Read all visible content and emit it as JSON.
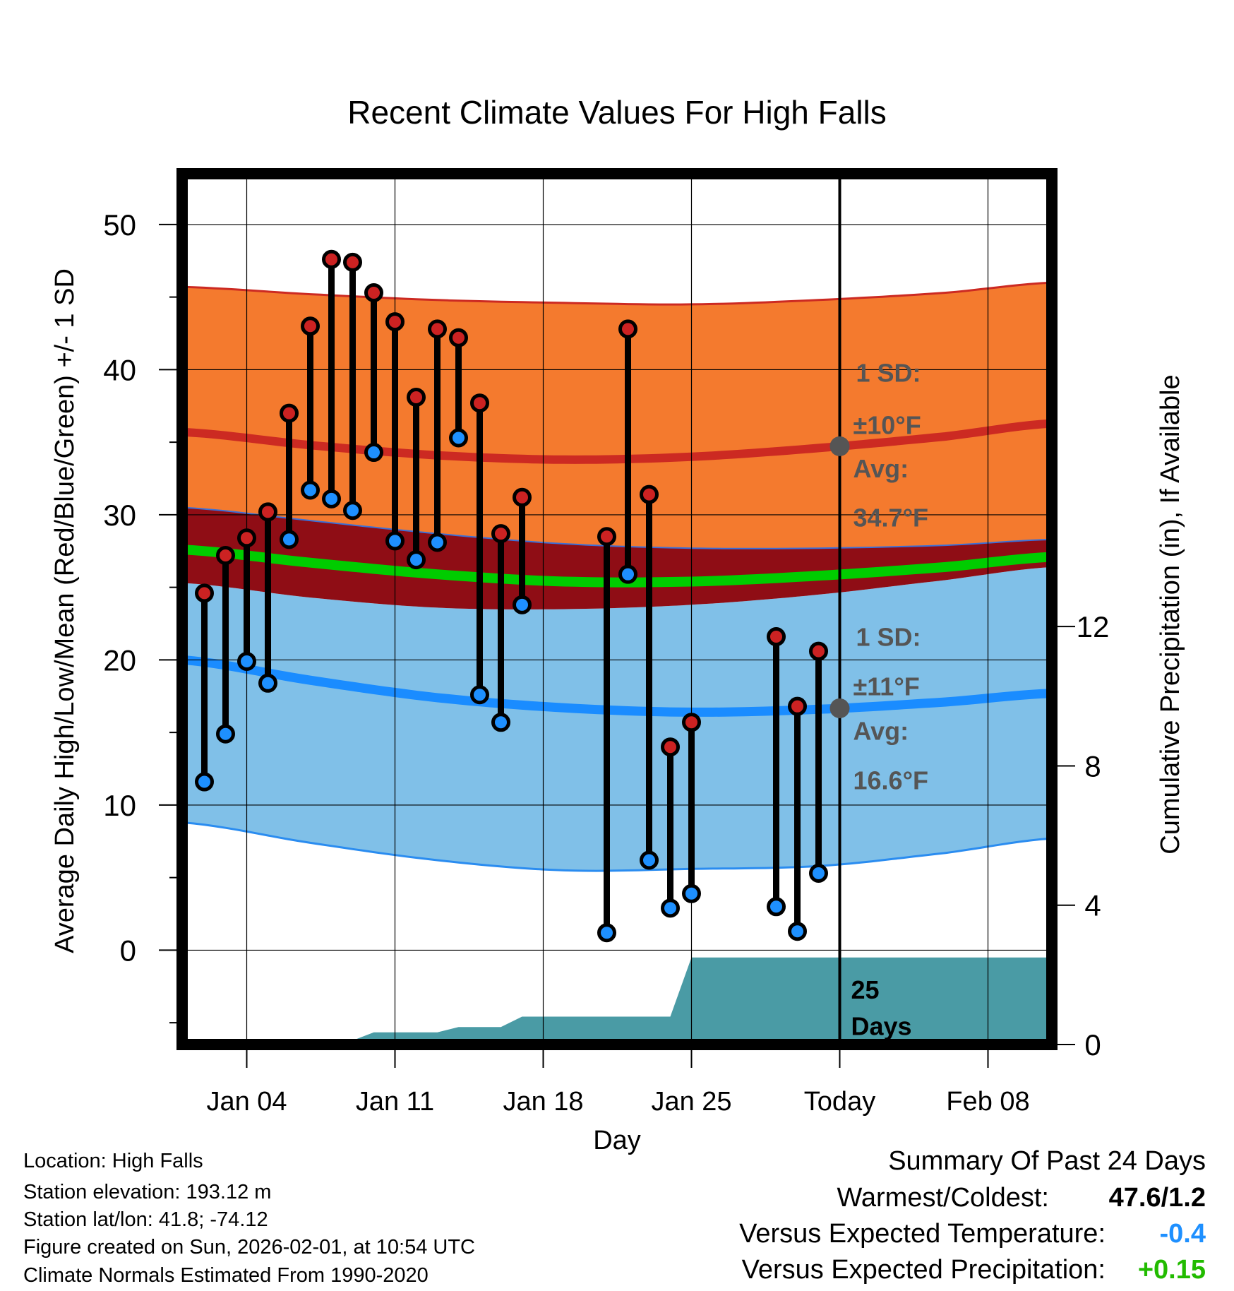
{
  "chart_data": {
    "type": "line",
    "title": "Recent Climate Values For High Falls",
    "xlabel": "Day",
    "ylabel_left": "Average Daily High/Low/Mean (Red/Blue/Green) +/- 1 SD",
    "ylabel_right": "Cumulative Precipitation (in), If Available",
    "x_range_days": [
      0,
      41
    ],
    "ylim_left": [
      -6.5,
      53.5
    ],
    "ylim_right": [
      0,
      25
    ],
    "y_ticks_left": [
      0,
      10,
      20,
      30,
      40,
      50
    ],
    "y_ticks_right": [
      0,
      4,
      8,
      12
    ],
    "x_ticks": [
      {
        "day": 3,
        "label": "Jan 04"
      },
      {
        "day": 10,
        "label": "Jan 11"
      },
      {
        "day": 17,
        "label": "Jan 18"
      },
      {
        "day": 24,
        "label": "Jan 25"
      },
      {
        "day": 31,
        "label": "Today"
      },
      {
        "day": 38,
        "label": "Feb 08"
      }
    ],
    "today_day": 31,
    "normals": {
      "days": [
        0,
        6,
        12,
        18,
        24,
        30,
        36,
        41
      ],
      "high_avg": [
        35.7,
        34.8,
        34.1,
        33.8,
        34.0,
        34.6,
        35.4,
        36.3
      ],
      "high_upper": [
        45.7,
        45.2,
        44.8,
        44.6,
        44.5,
        44.8,
        45.3,
        46.0
      ],
      "high_lower": [
        30.5,
        29.6,
        28.7,
        28.0,
        27.7,
        27.7,
        27.9,
        28.3
      ],
      "mean_avg": [
        27.6,
        26.7,
        25.9,
        25.4,
        25.4,
        25.8,
        26.4,
        27.1
      ],
      "low_avg": [
        20.0,
        18.6,
        17.4,
        16.7,
        16.4,
        16.6,
        17.1,
        17.7
      ],
      "low_upper": [
        25.3,
        24.3,
        23.6,
        23.5,
        23.8,
        24.5,
        25.5,
        26.4
      ],
      "low_lower": [
        8.8,
        7.4,
        6.2,
        5.5,
        5.6,
        5.8,
        6.7,
        7.7
      ]
    },
    "observations": [
      {
        "day": 1,
        "high": 24.6,
        "low": 11.6
      },
      {
        "day": 2,
        "high": 27.2,
        "low": 14.9
      },
      {
        "day": 3,
        "high": 28.4,
        "low": 19.9
      },
      {
        "day": 4,
        "high": 30.2,
        "low": 18.4
      },
      {
        "day": 5,
        "high": 37.0,
        "low": 28.3
      },
      {
        "day": 6,
        "high": 43.0,
        "low": 31.7
      },
      {
        "day": 7,
        "high": 47.6,
        "low": 31.1
      },
      {
        "day": 8,
        "high": 47.4,
        "low": 30.3
      },
      {
        "day": 9,
        "high": 45.3,
        "low": 34.3
      },
      {
        "day": 10,
        "high": 43.3,
        "low": 28.2
      },
      {
        "day": 11,
        "high": 38.1,
        "low": 26.9
      },
      {
        "day": 12,
        "high": 42.8,
        "low": 28.1
      },
      {
        "day": 13,
        "high": 42.2,
        "low": 35.3
      },
      {
        "day": 14,
        "high": 37.7,
        "low": 17.6
      },
      {
        "day": 15,
        "high": 28.7,
        "low": 15.7
      },
      {
        "day": 16,
        "high": 31.2,
        "low": 23.8
      },
      {
        "day": 20,
        "high": 28.5,
        "low": 1.2
      },
      {
        "day": 21,
        "high": 42.8,
        "low": 25.9
      },
      {
        "day": 22,
        "high": 31.4,
        "low": 6.2
      },
      {
        "day": 23,
        "high": 14.0,
        "low": 2.9
      },
      {
        "day": 24,
        "high": 15.7,
        "low": 3.9
      },
      {
        "day": 28,
        "high": 21.6,
        "low": 3.0
      },
      {
        "day": 29,
        "high": 16.8,
        "low": 1.3
      },
      {
        "day": 30,
        "high": 20.6,
        "low": 5.3
      }
    ],
    "precip_cumulative": [
      {
        "day": 0,
        "value": 0.0
      },
      {
        "day": 7.5,
        "value": 0.0
      },
      {
        "day": 9,
        "value": 0.35
      },
      {
        "day": 12,
        "value": 0.35
      },
      {
        "day": 13,
        "value": 0.5
      },
      {
        "day": 15,
        "value": 0.5
      },
      {
        "day": 16,
        "value": 0.8
      },
      {
        "day": 23,
        "value": 0.8
      },
      {
        "day": 24,
        "value": 2.5
      },
      {
        "day": 41,
        "value": 2.5
      }
    ],
    "annotations": {
      "high_sd_label": "1 SD:",
      "high_sd_value": "±10°F",
      "high_avg_label": "Avg:",
      "high_avg_value": "34.7°F",
      "low_sd_label": "1 SD:",
      "low_sd_value": "±11°F",
      "low_avg_label": "Avg:",
      "low_avg_value": "16.6°F",
      "days_count": "25",
      "days_word": "Days"
    },
    "colors": {
      "high_band": "#f47a2e",
      "high_line": "#cc2a22",
      "dark_band": "#8f0d15",
      "mean_line": "#00cc00",
      "low_band": "#80c0e8",
      "low_line": "#1a8cff",
      "low_edge": "#2a8cf0",
      "precip": "#4a9ba5",
      "high_dot": "#cc2222",
      "low_dot": "#1e90ff",
      "marker_gray": "#555555"
    }
  },
  "info": {
    "location": "Location: High Falls",
    "elevation": "Station elevation: 193.12 m",
    "latlon": "Station lat/lon: 41.8; -74.12",
    "created": "Figure created on Sun, 2026-02-01, at 10:54 UTC",
    "normals": "Climate Normals Estimated From 1990-2020"
  },
  "summary": {
    "title": "Summary Of Past 24 Days",
    "warm_cold_label": "Warmest/Coldest:",
    "warm_cold_value": "47.6/1.2",
    "temp_label": "Versus Expected Temperature:",
    "temp_value": "-0.4",
    "precip_label": "Versus Expected Precipitation:",
    "precip_value": "+0.15",
    "temp_color": "#1e90ff",
    "precip_color": "#22bb00"
  }
}
